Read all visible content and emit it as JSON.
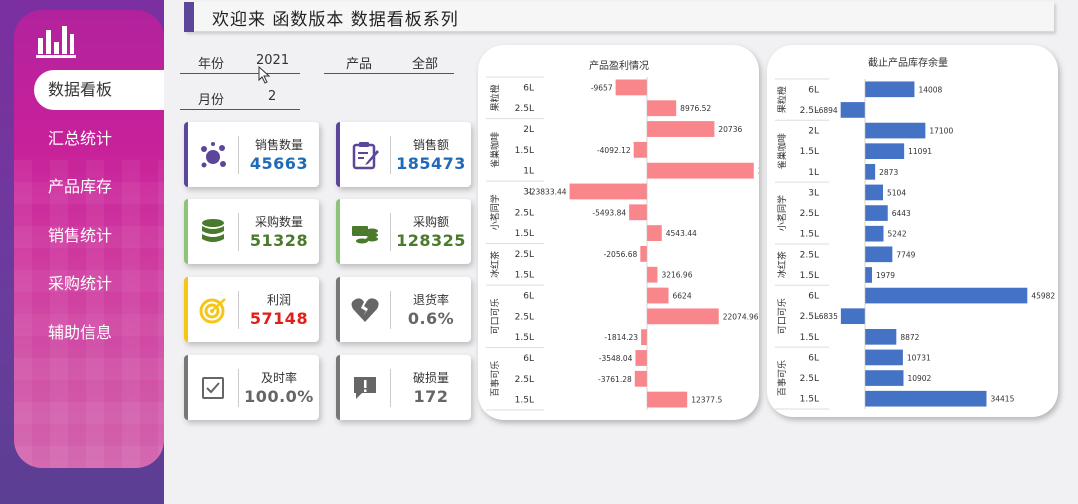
{
  "header": {
    "title": "欢迎来 函数版本 数据看板系列"
  },
  "sidebar": {
    "logo": "bar-chart-logo-icon",
    "items": [
      {
        "label": "数据看板",
        "active": true
      },
      {
        "label": "汇总统计"
      },
      {
        "label": "产品库存"
      },
      {
        "label": "销售统计"
      },
      {
        "label": "采购统计"
      },
      {
        "label": "辅助信息"
      }
    ]
  },
  "filters": {
    "year": {
      "label": "年份",
      "value": "2021"
    },
    "product": {
      "label": "产品",
      "value": "全部"
    },
    "month": {
      "label": "月份",
      "value": "2"
    }
  },
  "kpis": [
    {
      "label": "销售数量",
      "value": "45663",
      "color": "#1f6bb8",
      "accent": "#5c4699",
      "icon": "molecule-icon"
    },
    {
      "label": "销售额",
      "value": "185473",
      "color": "#1f6bb8",
      "accent": "#5c4699",
      "icon": "clipboard-edit-icon"
    },
    {
      "label": "采购数量",
      "value": "51328",
      "color": "#4a7a2c",
      "accent": "#8dc47a",
      "icon": "database-icon"
    },
    {
      "label": "采购额",
      "value": "128325",
      "color": "#4a7a2c",
      "accent": "#8dc47a",
      "icon": "money-coins-icon"
    },
    {
      "label": "利润",
      "value": "57148",
      "color": "#e0201a",
      "accent": "#f5c518",
      "icon": "target-icon"
    },
    {
      "label": "退货率",
      "value": "0.6%",
      "color": "#666666",
      "accent": "#777777",
      "icon": "broken-heart-icon"
    },
    {
      "label": "及时率",
      "value": "100.0%",
      "color": "#666666",
      "accent": "#777777",
      "icon": "checkbox-icon"
    },
    {
      "label": "破损量",
      "value": "172",
      "color": "#666666",
      "accent": "#777777",
      "icon": "alert-message-icon"
    }
  ],
  "chart_data": [
    {
      "type": "bar",
      "title": "产品盈利情况",
      "orientation": "horizontal",
      "color": "#f8868b",
      "groups": [
        {
          "name": "果粒橙",
          "items": [
            {
              "size": "6L",
              "value": -9657
            },
            {
              "size": "2.5L",
              "value": 8976.52
            }
          ]
        },
        {
          "name": "雀巢咖啡",
          "items": [
            {
              "size": "2L",
              "value": 20736
            },
            {
              "size": "1.5L",
              "value": -4092.12
            },
            {
              "size": "1L",
              "value": 32855.2
            }
          ]
        },
        {
          "name": "小茗同学",
          "items": [
            {
              "size": "3L",
              "value": -23833.44
            },
            {
              "size": "2.5L",
              "value": -5493.84
            },
            {
              "size": "1.5L",
              "value": 4543.44
            }
          ]
        },
        {
          "name": "冰红茶",
          "items": [
            {
              "size": "2.5L",
              "value": -2056.68
            },
            {
              "size": "1.5L",
              "value": 3216.96
            }
          ]
        },
        {
          "name": "可口可乐",
          "items": [
            {
              "size": "6L",
              "value": 6624
            },
            {
              "size": "2.5L",
              "value": 22074.96
            },
            {
              "size": "1.5L",
              "value": -1814.23
            }
          ]
        },
        {
          "name": "百事可乐",
          "items": [
            {
              "size": "6L",
              "value": -3548.04
            },
            {
              "size": "2.5L",
              "value": -3761.28
            },
            {
              "size": "1.5L",
              "value": 12377.5
            }
          ]
        }
      ]
    },
    {
      "type": "bar",
      "title": "截止产品库存余量",
      "orientation": "horizontal",
      "color": "#4472c4",
      "groups": [
        {
          "name": "果粒橙",
          "items": [
            {
              "size": "6L",
              "value": 14008
            },
            {
              "size": "2.5L",
              "value": -6894
            }
          ]
        },
        {
          "name": "雀巢咖啡",
          "items": [
            {
              "size": "2L",
              "value": 17100
            },
            {
              "size": "1.5L",
              "value": 11091
            },
            {
              "size": "1L",
              "value": 2873
            }
          ]
        },
        {
          "name": "小茗同学",
          "items": [
            {
              "size": "3L",
              "value": 5104
            },
            {
              "size": "2.5L",
              "value": 6443
            },
            {
              "size": "1.5L",
              "value": 5242
            }
          ]
        },
        {
          "name": "冰红茶",
          "items": [
            {
              "size": "2.5L",
              "value": 7749
            },
            {
              "size": "1.5L",
              "value": 1979
            }
          ]
        },
        {
          "name": "可口可乐",
          "items": [
            {
              "size": "6L",
              "value": 45982
            },
            {
              "size": "2.5L",
              "value": -6835
            },
            {
              "size": "1.5L",
              "value": 8872
            }
          ]
        },
        {
          "name": "百事可乐",
          "items": [
            {
              "size": "6L",
              "value": 10731
            },
            {
              "size": "2.5L",
              "value": 10902
            },
            {
              "size": "1.5L",
              "value": 34415
            }
          ]
        }
      ]
    }
  ]
}
